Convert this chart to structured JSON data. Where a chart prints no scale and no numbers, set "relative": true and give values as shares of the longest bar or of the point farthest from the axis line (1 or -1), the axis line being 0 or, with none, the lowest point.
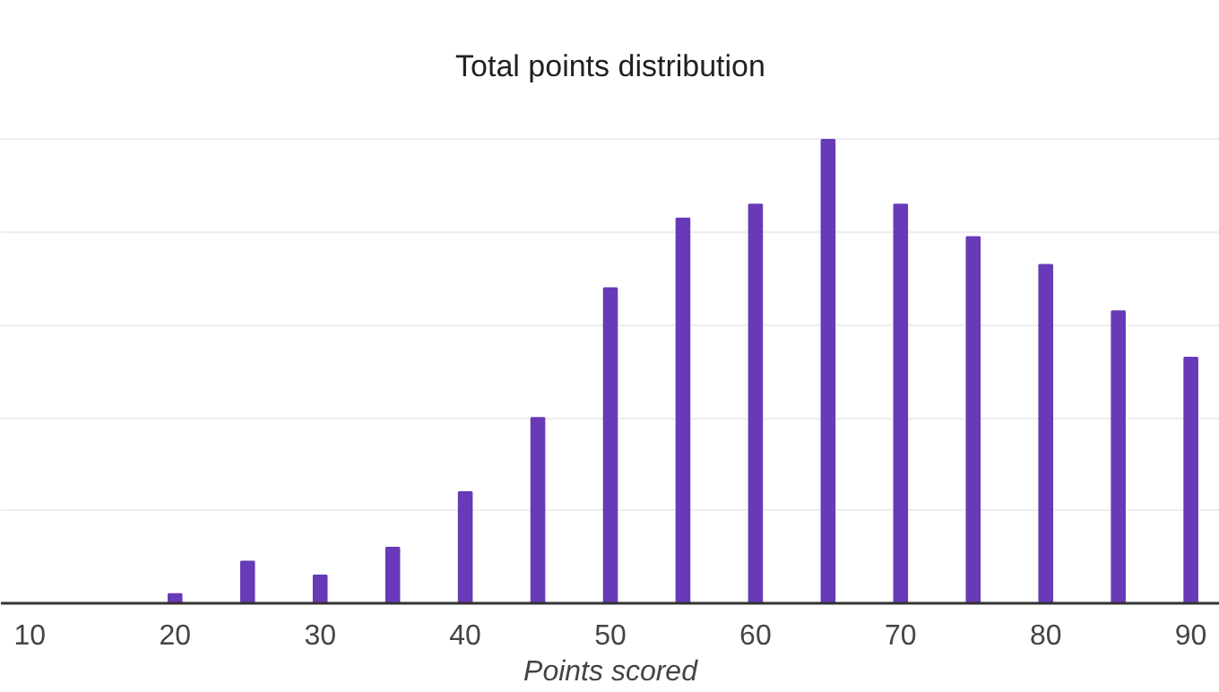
{
  "chart_data": {
    "type": "bar",
    "title": "Total points distribution",
    "xlabel": "Points scored",
    "relative": true,
    "x": [
      20,
      25,
      30,
      35,
      40,
      45,
      50,
      55,
      60,
      65,
      70,
      75,
      80,
      85,
      90
    ],
    "values": [
      0.02,
      0.09,
      0.06,
      0.12,
      0.24,
      0.4,
      0.68,
      0.83,
      0.86,
      1,
      0.86,
      0.79,
      0.73,
      0.63,
      0.53
    ],
    "color": "#673ab7",
    "xlim": [
      8,
      92
    ],
    "xticks": [
      10,
      20,
      30,
      40,
      50,
      60,
      70,
      80,
      90
    ],
    "grid": "y"
  }
}
